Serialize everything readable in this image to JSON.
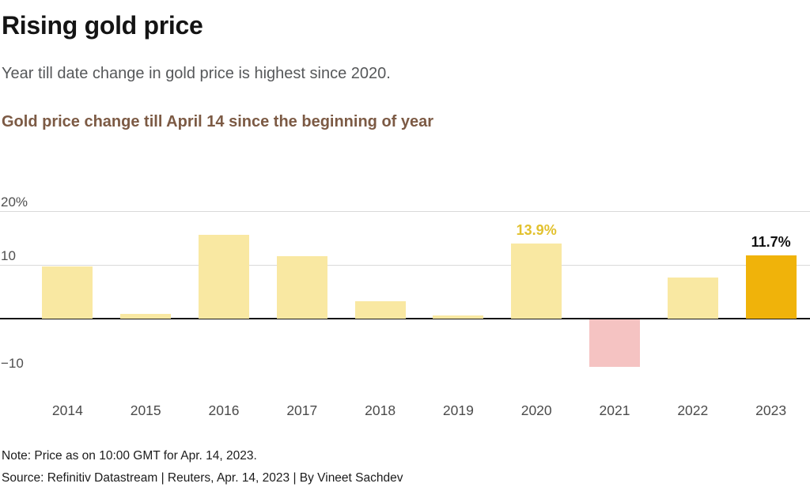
{
  "header": {
    "title": "Rising gold price",
    "subtitle": "Year till date change in gold price is highest since 2020.",
    "chart_title": "Gold price change till April 14 since the beginning of year"
  },
  "footer": {
    "note": "Note: Price as on 10:00 GMT for Apr. 14, 2023.",
    "source": "Source: Refinitiv Datastream | Reuters, Apr. 14, 2023 | By Vineet Sachdev"
  },
  "chart_data": {
    "type": "bar",
    "title": "Gold price change till April 14 since the beginning of year",
    "categories": [
      "2014",
      "2015",
      "2016",
      "2017",
      "2018",
      "2019",
      "2020",
      "2021",
      "2022",
      "2023"
    ],
    "values": [
      9.7,
      0.9,
      15.6,
      11.6,
      3.2,
      0.6,
      13.9,
      -8.8,
      7.6,
      11.7
    ],
    "xlabel": "",
    "ylabel": "",
    "ylim": [
      -13,
      22
    ],
    "grid": true,
    "legend": false,
    "yticks": [
      {
        "value": 20,
        "label": "20%",
        "line": true
      },
      {
        "value": 10,
        "label": "10",
        "line": true
      },
      {
        "value": -10,
        "label": "−10",
        "line": false
      }
    ],
    "highlight_index": 9,
    "colors": {
      "default": "#F9E8A2",
      "negative": "#F5C3C2",
      "highlight": "#F0B30A",
      "label_2020": "#E2C12E",
      "label_2023": "#111111"
    },
    "annotations": [
      {
        "index": 6,
        "text": "13.9%",
        "color": "#E2C12E"
      },
      {
        "index": 9,
        "text": "11.7%",
        "color": "#111111"
      }
    ]
  }
}
